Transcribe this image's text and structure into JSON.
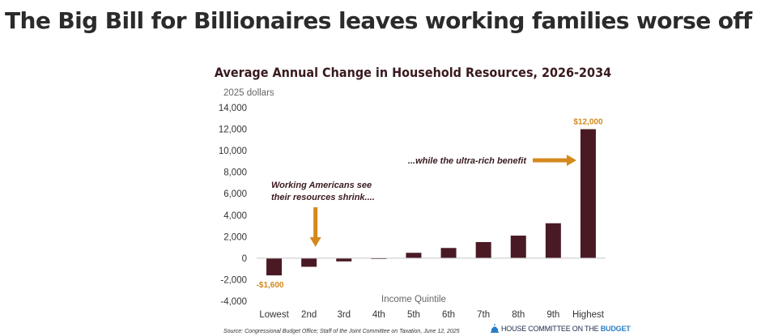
{
  "headline": "The Big Bill for Billionaires leaves working families worse off",
  "colors": {
    "bar": "#4a1a24",
    "accent": "#d4891c",
    "title": "#3a1a1f",
    "axis_text": "#333333",
    "unit_text": "#666666"
  },
  "chart_data": {
    "type": "bar",
    "title": "Average Annual Change in Household Resources, 2026-2034",
    "ylabel": "2025 dollars",
    "xlabel": "Income Quintile",
    "ylim": [
      -4000,
      14000
    ],
    "yticks": [
      "14,000",
      "12,000",
      "10,000",
      "8,000",
      "6,000",
      "4,000",
      "2,000",
      "0",
      "-2,000",
      "-4,000"
    ],
    "ytick_values": [
      14000,
      12000,
      10000,
      8000,
      6000,
      4000,
      2000,
      0,
      -2000,
      -4000
    ],
    "categories": [
      "Lowest",
      "2nd",
      "3rd",
      "4th",
      "5th",
      "6th",
      "7th",
      "8th",
      "9th",
      "Highest"
    ],
    "values": [
      -1600,
      -800,
      -300,
      -60,
      500,
      950,
      1500,
      2100,
      3250,
      12000
    ],
    "data_labels": [
      {
        "category": "Lowest",
        "text": "-$1,600"
      },
      {
        "category": "Highest",
        "text": "$12,000"
      }
    ],
    "annotations": [
      {
        "lines": [
          "Working Americans see",
          "their resources shrink...."
        ],
        "arrow": "down",
        "target": "2nd"
      },
      {
        "lines": [
          "...while the ultra-rich benefit"
        ],
        "arrow": "right",
        "target": "Highest"
      }
    ],
    "grid": false,
    "legend": "none"
  },
  "source": "Source: Congressional Budget Office; Staff of the Joint Committee on Taxation, June 12, 2025",
  "logo": {
    "text_main": "HOUSE COMMITTEE ON THE ",
    "text_accent": "BUDGET",
    "icon": "capitol-dome-icon"
  }
}
